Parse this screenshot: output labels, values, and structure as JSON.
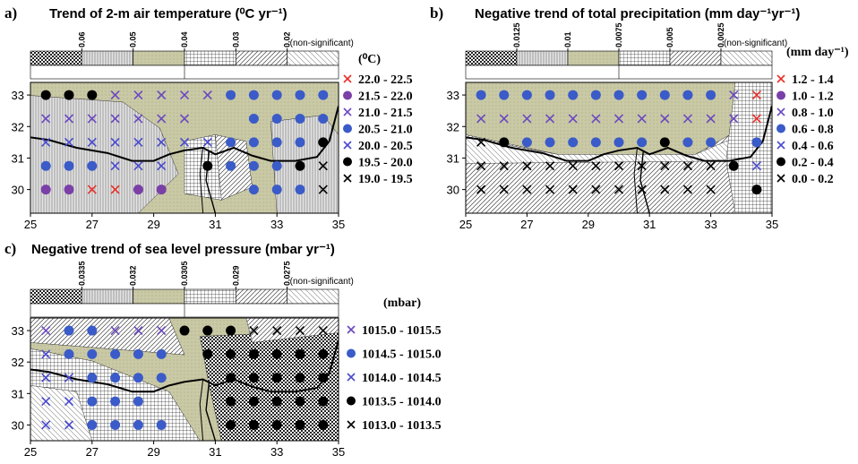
{
  "chart_data": [
    {
      "type": "scatter",
      "panel_label": "a)",
      "title": "Trend of 2-m air temperature (⁰C yr⁻¹)",
      "colorbar": {
        "ticks": [
          0.06,
          0.05,
          0.04,
          0.03,
          0.02
        ],
        "label": "(non-significant)"
      },
      "legend_title": "(⁰C)",
      "xlim": [
        25,
        35
      ],
      "ylim": [
        29.25,
        33.4
      ],
      "xticks": [
        25,
        27,
        29,
        31,
        33,
        35
      ],
      "yticks": [
        30,
        31,
        32,
        33
      ],
      "series": [
        {
          "name": "22.0 - 22.5",
          "color": "#e8302a",
          "marker": "x",
          "x": [
            27,
            27.75
          ],
          "y": [
            30,
            30
          ]
        },
        {
          "name": "21.5 - 22.0",
          "color": "#7b3fa8",
          "marker": "o",
          "x": [
            25.5,
            26.25,
            28.5,
            29.25
          ],
          "y": [
            30,
            30,
            30,
            30
          ]
        },
        {
          "name": "21.0 - 21.5",
          "color": "#6a48c0",
          "marker": "x",
          "x": [
            27.75,
            28.5,
            29.25,
            30,
            30.75,
            25.5,
            26.25,
            27,
            27.75,
            28.5,
            29.25,
            30
          ],
          "y": [
            33,
            33,
            33,
            33,
            33,
            32.25,
            32.25,
            32.25,
            32.25,
            32.25,
            32.25,
            32.25
          ]
        },
        {
          "name": "20.5 - 21.0",
          "color": "#3a5bc8",
          "marker": "o",
          "x": [
            31.5,
            32.25,
            33,
            33.75,
            34.5,
            32.25,
            33,
            33.75,
            34.5,
            31.5,
            32.25,
            33,
            33.75,
            25.5,
            26.25,
            27,
            31.5,
            32.25,
            33,
            32.25,
            33,
            33.75
          ],
          "y": [
            33,
            33,
            33,
            33,
            33,
            32.25,
            32.25,
            32.25,
            32.25,
            31.5,
            31.5,
            31.5,
            31.5,
            30.75,
            30.75,
            30.75,
            30.75,
            30.75,
            30.75,
            30,
            30,
            30
          ]
        },
        {
          "name": "20.0 - 20.5",
          "color": "#4a4ad0",
          "marker": "x",
          "x": [
            25.5,
            26.25,
            27,
            27.75,
            28.5,
            29.25,
            30,
            30.75,
            27.75,
            28.5,
            29.25
          ],
          "y": [
            31.5,
            31.5,
            31.5,
            31.5,
            31.5,
            31.5,
            31.5,
            31.5,
            30.75,
            30.75,
            30.75
          ]
        },
        {
          "name": "19.5 - 20.0",
          "color": "#000000",
          "marker": "o",
          "x": [
            25.5,
            26.25,
            27,
            34.5,
            30.75,
            33.75
          ],
          "y": [
            33,
            33,
            33,
            31.5,
            30.75,
            30.75
          ]
        },
        {
          "name": "19.0 - 19.5",
          "color": "#000000",
          "marker": "x",
          "x": [
            34.5,
            34.5
          ],
          "y": [
            30.75,
            30
          ]
        }
      ]
    },
    {
      "type": "scatter",
      "panel_label": "b)",
      "title": "Negative trend of total precipitation (mm day⁻¹yr⁻¹)",
      "colorbar": {
        "ticks": [
          0.0125,
          0.01,
          0.0075,
          0.005,
          0.0025
        ],
        "label": "(non-significant)"
      },
      "legend_title": "(mm day⁻¹)",
      "xlim": [
        25,
        35
      ],
      "ylim": [
        29.25,
        33.4
      ],
      "xticks": [
        25,
        27,
        29,
        31,
        33,
        35
      ],
      "yticks": [
        30,
        31,
        32,
        33
      ],
      "series": [
        {
          "name": "1.2 - 1.4",
          "color": "#e8302a",
          "marker": "x",
          "x": [
            34.5,
            34.5
          ],
          "y": [
            33,
            32.25
          ]
        },
        {
          "name": "1.0 - 1.2",
          "color": "#7b3fa8",
          "marker": "o",
          "x": [],
          "y": []
        },
        {
          "name": "0.8 - 1.0",
          "color": "#6a48c0",
          "marker": "x",
          "x": [
            33.75,
            25.5,
            26.25,
            27,
            27.75,
            28.5,
            29.25,
            30,
            30.75,
            31.5,
            32.25,
            33,
            33.75
          ],
          "y": [
            33,
            32.25,
            32.25,
            32.25,
            32.25,
            32.25,
            32.25,
            32.25,
            32.25,
            32.25,
            32.25,
            32.25,
            32.25
          ]
        },
        {
          "name": "0.6 - 0.8",
          "color": "#3a5bc8",
          "marker": "o",
          "x": [
            25.5,
            26.25,
            27,
            27.75,
            28.5,
            29.25,
            30,
            30.75,
            31.5,
            32.25,
            33,
            27,
            27.75,
            28.5,
            29.25,
            30,
            30.75,
            32.25,
            33,
            34.5
          ],
          "y": [
            33,
            33,
            33,
            33,
            33,
            33,
            33,
            33,
            33,
            33,
            33,
            31.5,
            31.5,
            31.5,
            31.5,
            31.5,
            31.5,
            31.5,
            31.5,
            31.5
          ]
        },
        {
          "name": "0.4 - 0.6",
          "color": "#4a4ad0",
          "marker": "x",
          "x": [
            34.5
          ],
          "y": [
            30.75
          ]
        },
        {
          "name": "0.2 - 0.4",
          "color": "#000000",
          "marker": "o",
          "x": [
            26.25,
            31.5,
            33.75,
            34.5
          ],
          "y": [
            31.5,
            31.5,
            30.75,
            30
          ]
        },
        {
          "name": "0.0 - 0.2",
          "color": "#000000",
          "marker": "x",
          "x": [
            25.5,
            25.5,
            26.25,
            27,
            27.75,
            28.5,
            29.25,
            30,
            30.75,
            31.5,
            32.25,
            33,
            25.5,
            26.25,
            27,
            27.75,
            28.5,
            29.25,
            30,
            30.75,
            31.5,
            32.25,
            33
          ],
          "y": [
            31.5,
            30.75,
            30.75,
            30.75,
            30.75,
            30.75,
            30.75,
            30.75,
            30.75,
            30.75,
            30.75,
            30.75,
            30,
            30,
            30,
            30,
            30,
            30,
            30,
            30,
            30,
            30,
            30
          ]
        }
      ]
    },
    {
      "type": "scatter",
      "panel_label": "c)",
      "title": "Negative trend  of sea level pressure (mbar yr⁻¹)",
      "colorbar": {
        "ticks": [
          0.0335,
          0.032,
          0.0305,
          0.029,
          0.0275
        ],
        "label": "(non-significant)"
      },
      "legend_title": "(mbar)",
      "xlim": [
        25,
        35
      ],
      "ylim": [
        29.5,
        33.4
      ],
      "xticks": [
        25,
        27,
        29,
        31,
        33,
        35
      ],
      "yticks": [
        30,
        31,
        32,
        33
      ],
      "series": [
        {
          "name": "1015.0 - 1015.5",
          "color": "#6a48c0",
          "marker": "x",
          "x": [
            25.5,
            27.75,
            28.5,
            29.25
          ],
          "y": [
            33,
            33,
            33,
            33
          ]
        },
        {
          "name": "1014.5 - 1015.0",
          "color": "#3a5bc8",
          "marker": "o",
          "x": [
            26.25,
            27,
            26.25,
            27,
            27.75,
            28.5,
            29.25,
            27,
            27.75,
            28.5,
            29.25,
            27,
            27.75,
            28.5,
            27,
            27.75,
            28.5,
            29.25
          ],
          "y": [
            33,
            33,
            32.25,
            32.25,
            32.25,
            32.25,
            32.25,
            31.5,
            31.5,
            31.5,
            31.5,
            30.75,
            30.75,
            30.75,
            30,
            30,
            30,
            30
          ]
        },
        {
          "name": "1014.0 - 1014.5",
          "color": "#4a4ad0",
          "marker": "x",
          "x": [
            25.5,
            25.5,
            26.25,
            25.5,
            26.25,
            25.5,
            26.25
          ],
          "y": [
            32.25,
            31.5,
            31.5,
            30.75,
            30.75,
            30,
            30
          ]
        },
        {
          "name": "1013.5 - 1014.0",
          "color": "#000000",
          "marker": "o",
          "x": [
            30,
            30.75,
            31.5,
            30.75,
            31.5,
            32.25,
            33,
            33.75,
            34.5,
            31.5,
            32.25,
            33,
            33.75,
            34.5,
            31.5,
            32.25,
            33,
            33.75,
            34.5,
            31.5,
            32.25,
            33,
            33.75,
            34.5
          ],
          "y": [
            33,
            33,
            33,
            32.25,
            32.25,
            32.25,
            32.25,
            32.25,
            32.25,
            31.5,
            31.5,
            31.5,
            31.5,
            31.5,
            30.75,
            30.75,
            30.75,
            30.75,
            30.75,
            30,
            30,
            30,
            30,
            30
          ]
        },
        {
          "name": "1013.0 - 1013.5",
          "color": "#000000",
          "marker": "x",
          "x": [
            32.25,
            33,
            33.75,
            34.5
          ],
          "y": [
            33,
            33,
            33,
            33
          ]
        }
      ]
    }
  ]
}
